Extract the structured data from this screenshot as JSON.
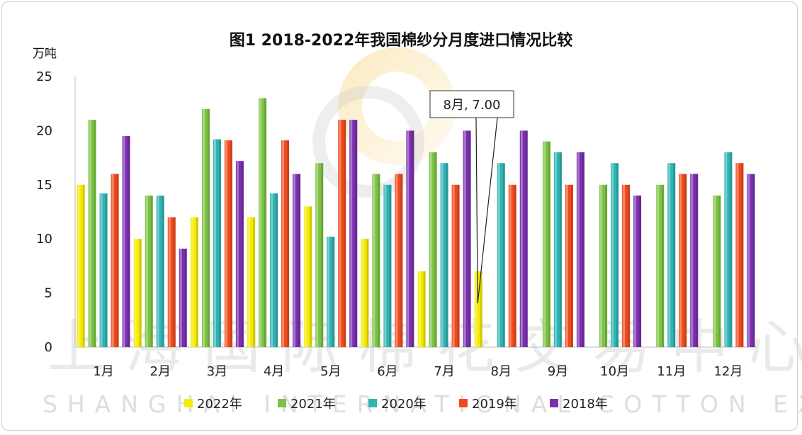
{
  "watermark": {
    "line1": "上海国际棉花交易中心",
    "line2": "SHANGHAI INTERNATIONAL COTTON EXCHANGE"
  },
  "chart_data": {
    "type": "bar",
    "title": "图1  2018-2022年我国棉纱分月度进口情况比较",
    "ylabel": "万吨",
    "xlabel": "",
    "ylim": [
      0,
      25
    ],
    "yticks": [
      0,
      5,
      10,
      15,
      20,
      25
    ],
    "grid": false,
    "legend_position": "bottom",
    "categories": [
      "1月",
      "2月",
      "3月",
      "4月",
      "5月",
      "6月",
      "7月",
      "8月",
      "9月",
      "10月",
      "11月",
      "12月"
    ],
    "series": [
      {
        "name": "2022年",
        "color": "#f5ea00",
        "values": [
          15,
          10,
          12,
          12,
          13,
          10,
          7,
          7,
          null,
          null,
          null,
          null
        ]
      },
      {
        "name": "2021年",
        "color": "#7cc242",
        "values": [
          21,
          14,
          22,
          23,
          17,
          16,
          18,
          null,
          19,
          15,
          15,
          14
        ]
      },
      {
        "name": "2020年",
        "color": "#2fb3b3",
        "values": [
          14.2,
          14,
          19.2,
          14.2,
          10.2,
          15,
          17,
          17,
          18,
          17,
          17,
          18
        ]
      },
      {
        "name": "2019年",
        "color": "#ef4a1c",
        "values": [
          16,
          12,
          19.1,
          19.1,
          21,
          16,
          15,
          15,
          15,
          15,
          16,
          17
        ]
      },
      {
        "name": "2018年",
        "color": "#7a2fae",
        "values": [
          19.5,
          9.1,
          17.2,
          16,
          21,
          20,
          20,
          20,
          18,
          14,
          16,
          16
        ]
      }
    ],
    "annotations": [
      {
        "text": "8月, 7.00",
        "category": "8月",
        "series": "2022年",
        "value": 7.0
      }
    ]
  }
}
